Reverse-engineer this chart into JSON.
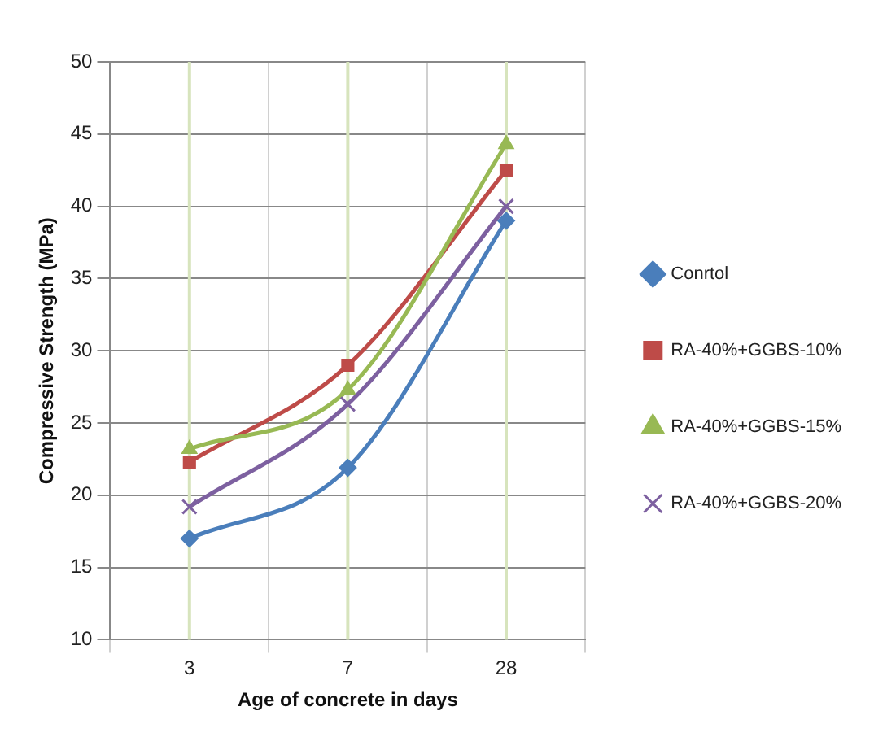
{
  "chart_data": {
    "type": "line",
    "xlabel": "Age of concrete in days",
    "ylabel": "Compressive Strength (MPa)",
    "categories": [
      "3",
      "7",
      "28"
    ],
    "series": [
      {
        "name": "Conrtol",
        "color": "#4a7ebb",
        "marker": "diamond",
        "values": [
          17,
          21.9,
          39
        ]
      },
      {
        "name": "RA-40%+GGBS-10%",
        "color": "#be4b48",
        "marker": "square",
        "values": [
          22.3,
          29,
          42.5
        ]
      },
      {
        "name": "RA-40%+GGBS-15%",
        "color": "#98b954",
        "marker": "triangle",
        "values": [
          23.2,
          27.3,
          44.3
        ]
      },
      {
        "name": "RA-40%+GGBS-20%",
        "color": "#7d60a0",
        "marker": "cross",
        "values": [
          19.2,
          26.3,
          40
        ]
      }
    ],
    "ylim": [
      10,
      50
    ],
    "yticks": [
      10,
      15,
      20,
      25,
      30,
      35,
      40,
      45,
      50
    ],
    "grid": true,
    "legend": "right"
  }
}
